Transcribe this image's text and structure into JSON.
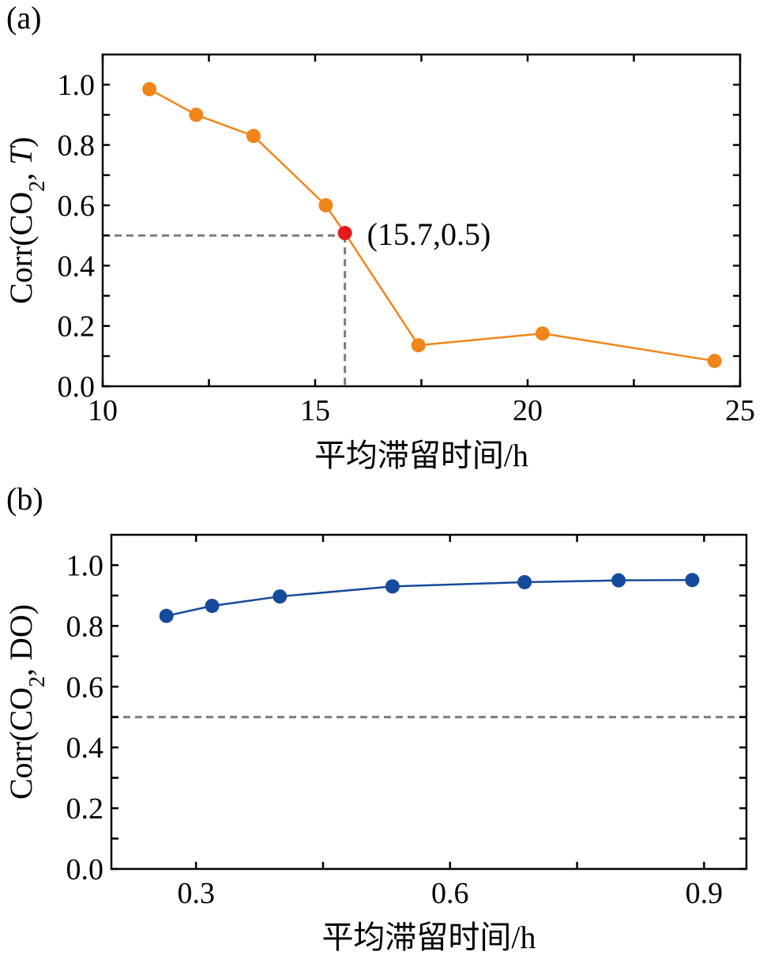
{
  "chart_data": [
    {
      "type": "line",
      "panel_label": "(a)",
      "title": "",
      "xlabel": "平均滞留时间/h",
      "ylabel_parts": [
        "Corr(CO",
        "2",
        ", ",
        "T",
        ")"
      ],
      "xlim": [
        10,
        25
      ],
      "ylim": [
        0,
        1.1
      ],
      "xticks": [
        10,
        15,
        20,
        25
      ],
      "xtick_labels": [
        "10",
        "15",
        "20",
        "25"
      ],
      "xminor_step": 2.5,
      "yticks": [
        0,
        0.2,
        0.4,
        0.6,
        0.8,
        1.0
      ],
      "ytick_labels": [
        "0.0",
        "0.2",
        "0.4",
        "0.6",
        "0.8",
        "1.0"
      ],
      "yminor_step": 0.1,
      "series": [
        {
          "name": "Corr(CO2,T)",
          "color": "#f08519",
          "x": [
            11.1,
            12.2,
            13.55,
            15.25,
            15.7,
            17.43,
            20.35,
            24.4
          ],
          "y": [
            0.985,
            0.9,
            0.83,
            0.6,
            0.508,
            0.136,
            0.175,
            0.084
          ]
        }
      ],
      "highlight": {
        "x": 15.7,
        "y": 0.5,
        "color": "#e3191c",
        "label": "(15.7,0.5)"
      },
      "reference_lines": {
        "hline": 0.5,
        "vline": 15.7,
        "color": "#7a7a7a"
      },
      "grid": false
    },
    {
      "type": "line",
      "panel_label": "(b)",
      "title": "",
      "xlabel": "平均滞留时间/h",
      "ylabel_parts": [
        "Corr(CO",
        "2",
        ", DO)"
      ],
      "xlim": [
        0.2,
        0.95
      ],
      "ylim": [
        0,
        1.1
      ],
      "xticks": [
        0.3,
        0.6,
        0.9
      ],
      "xtick_labels": [
        "0.3",
        "0.6",
        "0.9"
      ],
      "xminor_step": 0.15,
      "yticks": [
        0,
        0.2,
        0.4,
        0.6,
        0.8,
        1.0
      ],
      "ytick_labels": [
        "0.0",
        "0.2",
        "0.4",
        "0.6",
        "0.8",
        "1.0"
      ],
      "yminor_step": 0.1,
      "series": [
        {
          "name": "Corr(CO2,DO)",
          "color": "#164a9c",
          "x": [
            0.265,
            0.319,
            0.399,
            0.532,
            0.688,
            0.799,
            0.886
          ],
          "y": [
            0.833,
            0.866,
            0.897,
            0.93,
            0.944,
            0.95,
            0.951
          ]
        }
      ],
      "reference_lines": {
        "hline": 0.5,
        "color": "#7a7a7a"
      },
      "grid": false
    }
  ]
}
